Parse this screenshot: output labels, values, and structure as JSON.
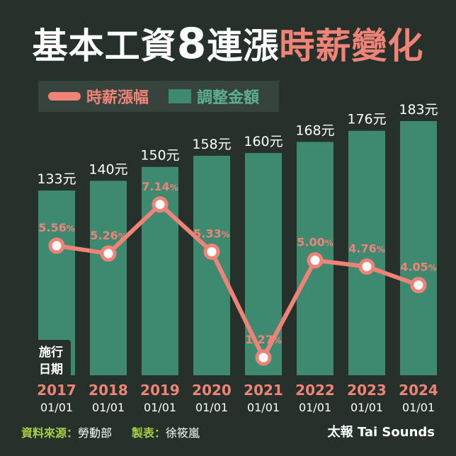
{
  "title": {
    "part1": "基本工資",
    "number": "8",
    "part2": "連漲",
    "part3": "時薪變化"
  },
  "legend": {
    "rate_label": "時薪漲幅",
    "amount_label": "調整金額"
  },
  "axis_note": {
    "line1": "施行",
    "line2": "日期"
  },
  "footer": {
    "source_label": "資料來源：",
    "source_value": "勞動部",
    "made_label": "製表：",
    "made_value": "徐筱嵐",
    "brand": "太報 Tai Sounds"
  },
  "colors": {
    "background": "#26312b",
    "bar": "#3d8a70",
    "line": "#f08378",
    "year_label": "#f08378",
    "footer_label": "#a7cc45"
  },
  "chart_data": {
    "type": "bar",
    "categories": [
      "2017",
      "2018",
      "2019",
      "2020",
      "2021",
      "2022",
      "2023",
      "2024"
    ],
    "date_labels": [
      "01/01",
      "01/01",
      "01/01",
      "01/01",
      "01/01",
      "01/01",
      "01/01",
      "01/01"
    ],
    "series": [
      {
        "name": "調整金額",
        "type": "bar",
        "values": [
          133,
          140,
          150,
          158,
          160,
          168,
          176,
          183
        ],
        "labels": [
          "133元",
          "140元",
          "150元",
          "158元",
          "160元",
          "168元",
          "176元",
          "183元"
        ]
      },
      {
        "name": "時薪漲幅",
        "type": "line",
        "values": [
          5.56,
          5.26,
          7.14,
          5.33,
          1.27,
          5.0,
          4.76,
          4.05
        ],
        "labels": [
          "5.56",
          "5.26",
          "7.14",
          "5.33",
          "1.27",
          "5.00",
          "4.76",
          "4.05"
        ],
        "unit": "%"
      }
    ],
    "title": "基本工資8連漲時薪變化",
    "legend_position": "top-left",
    "grid": false
  }
}
